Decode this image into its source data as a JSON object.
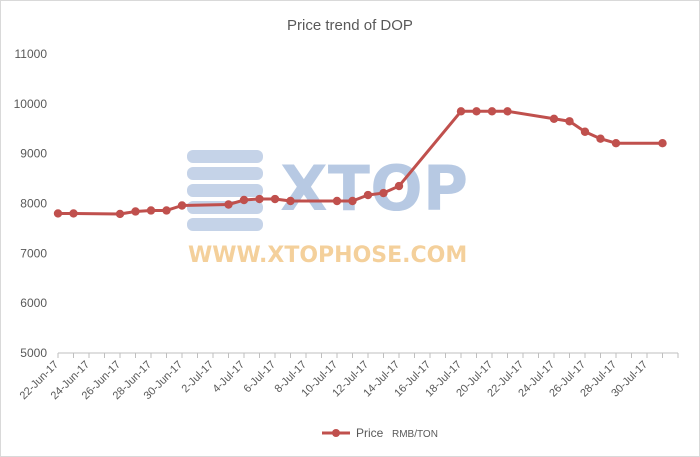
{
  "chart_data": {
    "type": "line",
    "title": "Price trend of DOP",
    "xlabel": "",
    "ylabel": "",
    "ylim": [
      5000,
      11000
    ],
    "yticks": [
      5000,
      6000,
      7000,
      8000,
      9000,
      10000,
      11000
    ],
    "xlim": [
      "2017-06-22",
      "2017-08-01"
    ],
    "xtick_labels": [
      "22-Jun-17",
      "24-Jun-17",
      "26-Jun-17",
      "28-Jun-17",
      "30-Jun-17",
      "2-Jul-17",
      "4-Jul-17",
      "6-Jul-17",
      "8-Jul-17",
      "10-Jul-17",
      "12-Jul-17",
      "14-Jul-17",
      "16-Jul-17",
      "18-Jul-17",
      "20-Jul-17",
      "22-Jul-17",
      "24-Jul-17",
      "26-Jul-17",
      "28-Jul-17",
      "30-Jul-17"
    ],
    "grid": false,
    "legend_position": "bottom",
    "series": [
      {
        "name": "Price",
        "color": "#c0504d",
        "points": [
          {
            "x": "2017-06-22",
            "y": 7800
          },
          {
            "x": "2017-06-23",
            "y": 7800
          },
          {
            "x": "2017-06-26",
            "y": 7790
          },
          {
            "x": "2017-06-27",
            "y": 7840
          },
          {
            "x": "2017-06-28",
            "y": 7860
          },
          {
            "x": "2017-06-29",
            "y": 7860
          },
          {
            "x": "2017-06-30",
            "y": 7960
          },
          {
            "x": "2017-07-03",
            "y": 7980
          },
          {
            "x": "2017-07-04",
            "y": 8070
          },
          {
            "x": "2017-07-05",
            "y": 8090
          },
          {
            "x": "2017-07-06",
            "y": 8090
          },
          {
            "x": "2017-07-07",
            "y": 8050
          },
          {
            "x": "2017-07-10",
            "y": 8050
          },
          {
            "x": "2017-07-11",
            "y": 8050
          },
          {
            "x": "2017-07-12",
            "y": 8170
          },
          {
            "x": "2017-07-13",
            "y": 8210
          },
          {
            "x": "2017-07-14",
            "y": 8350
          },
          {
            "x": "2017-07-18",
            "y": 9850
          },
          {
            "x": "2017-07-19",
            "y": 9850
          },
          {
            "x": "2017-07-20",
            "y": 9850
          },
          {
            "x": "2017-07-21",
            "y": 9850
          },
          {
            "x": "2017-07-24",
            "y": 9700
          },
          {
            "x": "2017-07-25",
            "y": 9650
          },
          {
            "x": "2017-07-26",
            "y": 9440
          },
          {
            "x": "2017-07-27",
            "y": 9300
          },
          {
            "x": "2017-07-28",
            "y": 9210
          },
          {
            "x": "2017-07-31",
            "y": 9210
          }
        ]
      }
    ],
    "legend_unit": "RMB/TON"
  },
  "watermark": {
    "brand": "XTOP",
    "url": "WWW.XTOPHOSE.COM",
    "color_brand": "#9fb8da",
    "color_url": "#f3c88a"
  }
}
